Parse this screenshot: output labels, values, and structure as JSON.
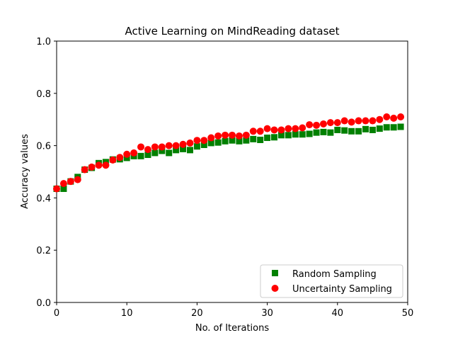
{
  "chart_data": {
    "type": "scatter",
    "title": "Active Learning on MindReading dataset",
    "xlabel": "No. of Iterations",
    "ylabel": "Accuracy values",
    "xlim": [
      0,
      50
    ],
    "ylim": [
      0,
      1.0
    ],
    "xticks": [
      "0",
      "10",
      "20",
      "30",
      "40",
      "50"
    ],
    "yticks": [
      "0.0",
      "0.2",
      "0.4",
      "0.6",
      "0.8",
      "1.0"
    ],
    "grid": false,
    "legend_position": "lower-right",
    "x": [
      0,
      1,
      2,
      3,
      4,
      5,
      6,
      7,
      8,
      9,
      10,
      11,
      12,
      13,
      14,
      15,
      16,
      17,
      18,
      19,
      20,
      21,
      22,
      23,
      24,
      25,
      26,
      27,
      28,
      29,
      30,
      31,
      32,
      33,
      34,
      35,
      36,
      37,
      38,
      39,
      40,
      41,
      42,
      43,
      44,
      45,
      46,
      47,
      48,
      49
    ],
    "series": [
      {
        "name": "Random Sampling",
        "color": "#008000",
        "marker": "square",
        "values": [
          0.435,
          0.435,
          0.463,
          0.48,
          0.508,
          0.515,
          0.533,
          0.537,
          0.547,
          0.548,
          0.553,
          0.56,
          0.56,
          0.565,
          0.572,
          0.58,
          0.572,
          0.583,
          0.587,
          0.583,
          0.597,
          0.603,
          0.61,
          0.612,
          0.617,
          0.62,
          0.617,
          0.62,
          0.625,
          0.622,
          0.63,
          0.632,
          0.64,
          0.64,
          0.643,
          0.643,
          0.645,
          0.65,
          0.652,
          0.65,
          0.66,
          0.658,
          0.655,
          0.655,
          0.663,
          0.66,
          0.665,
          0.67,
          0.67,
          0.672
        ]
      },
      {
        "name": "Uncertainty Sampling",
        "color": "#ff0000",
        "marker": "circle",
        "values": [
          0.435,
          0.455,
          0.463,
          0.47,
          0.508,
          0.518,
          0.525,
          0.525,
          0.545,
          0.555,
          0.567,
          0.572,
          0.595,
          0.585,
          0.595,
          0.595,
          0.6,
          0.6,
          0.605,
          0.61,
          0.62,
          0.62,
          0.63,
          0.637,
          0.64,
          0.64,
          0.637,
          0.64,
          0.655,
          0.655,
          0.665,
          0.66,
          0.66,
          0.665,
          0.665,
          0.668,
          0.68,
          0.678,
          0.683,
          0.688,
          0.688,
          0.695,
          0.69,
          0.695,
          0.695,
          0.695,
          0.7,
          0.71,
          0.705,
          0.71
        ]
      }
    ]
  }
}
